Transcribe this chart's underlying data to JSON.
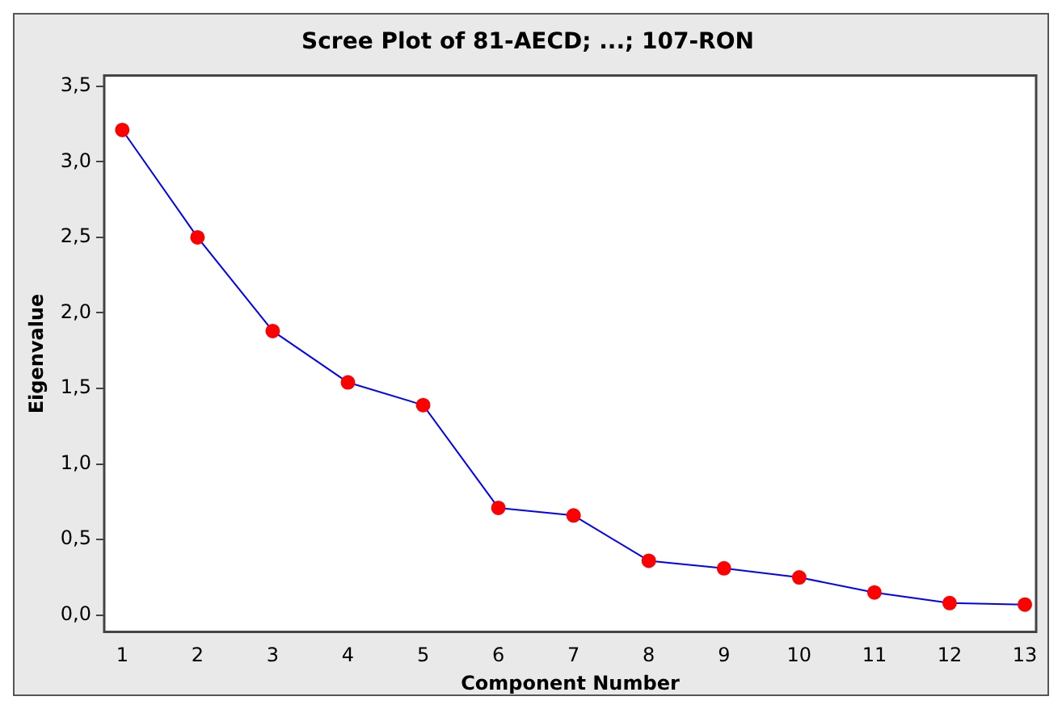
{
  "chart_data": {
    "type": "line",
    "title": "Scree Plot of 81-AECD; ...; 107-RON",
    "xlabel": "Component Number",
    "ylabel": "Eigenvalue",
    "x": [
      1,
      2,
      3,
      4,
      5,
      6,
      7,
      8,
      9,
      10,
      11,
      12,
      13
    ],
    "series": [
      {
        "color": "#0000ff",
        "values": [
          3.21,
          2.5,
          1.88,
          1.54,
          1.39,
          0.71,
          0.66,
          0.36,
          0.31,
          0.25,
          0.15,
          0.08,
          0.07
        ]
      }
    ],
    "xlim": [
      0.76,
      13.15
    ],
    "xticks": [
      1,
      2,
      3,
      4,
      5,
      6,
      7,
      8,
      9,
      10,
      11,
      12,
      13
    ],
    "ylim": [
      -0.11,
      3.57
    ],
    "yticks": [
      {
        "value": 0,
        "label": "0,0"
      },
      {
        "value": 0.5,
        "label": "0,5"
      },
      {
        "value": 1,
        "label": "1,0"
      },
      {
        "value": 1.5,
        "label": "1,5"
      },
      {
        "value": 2,
        "label": "2,0"
      },
      {
        "value": 2.5,
        "label": "2,5"
      },
      {
        "value": 3,
        "label": "3,0"
      },
      {
        "value": 3.5,
        "label": "3,5"
      }
    ],
    "marker": "circle",
    "line_style": "solid",
    "grid": false,
    "legend": false
  }
}
